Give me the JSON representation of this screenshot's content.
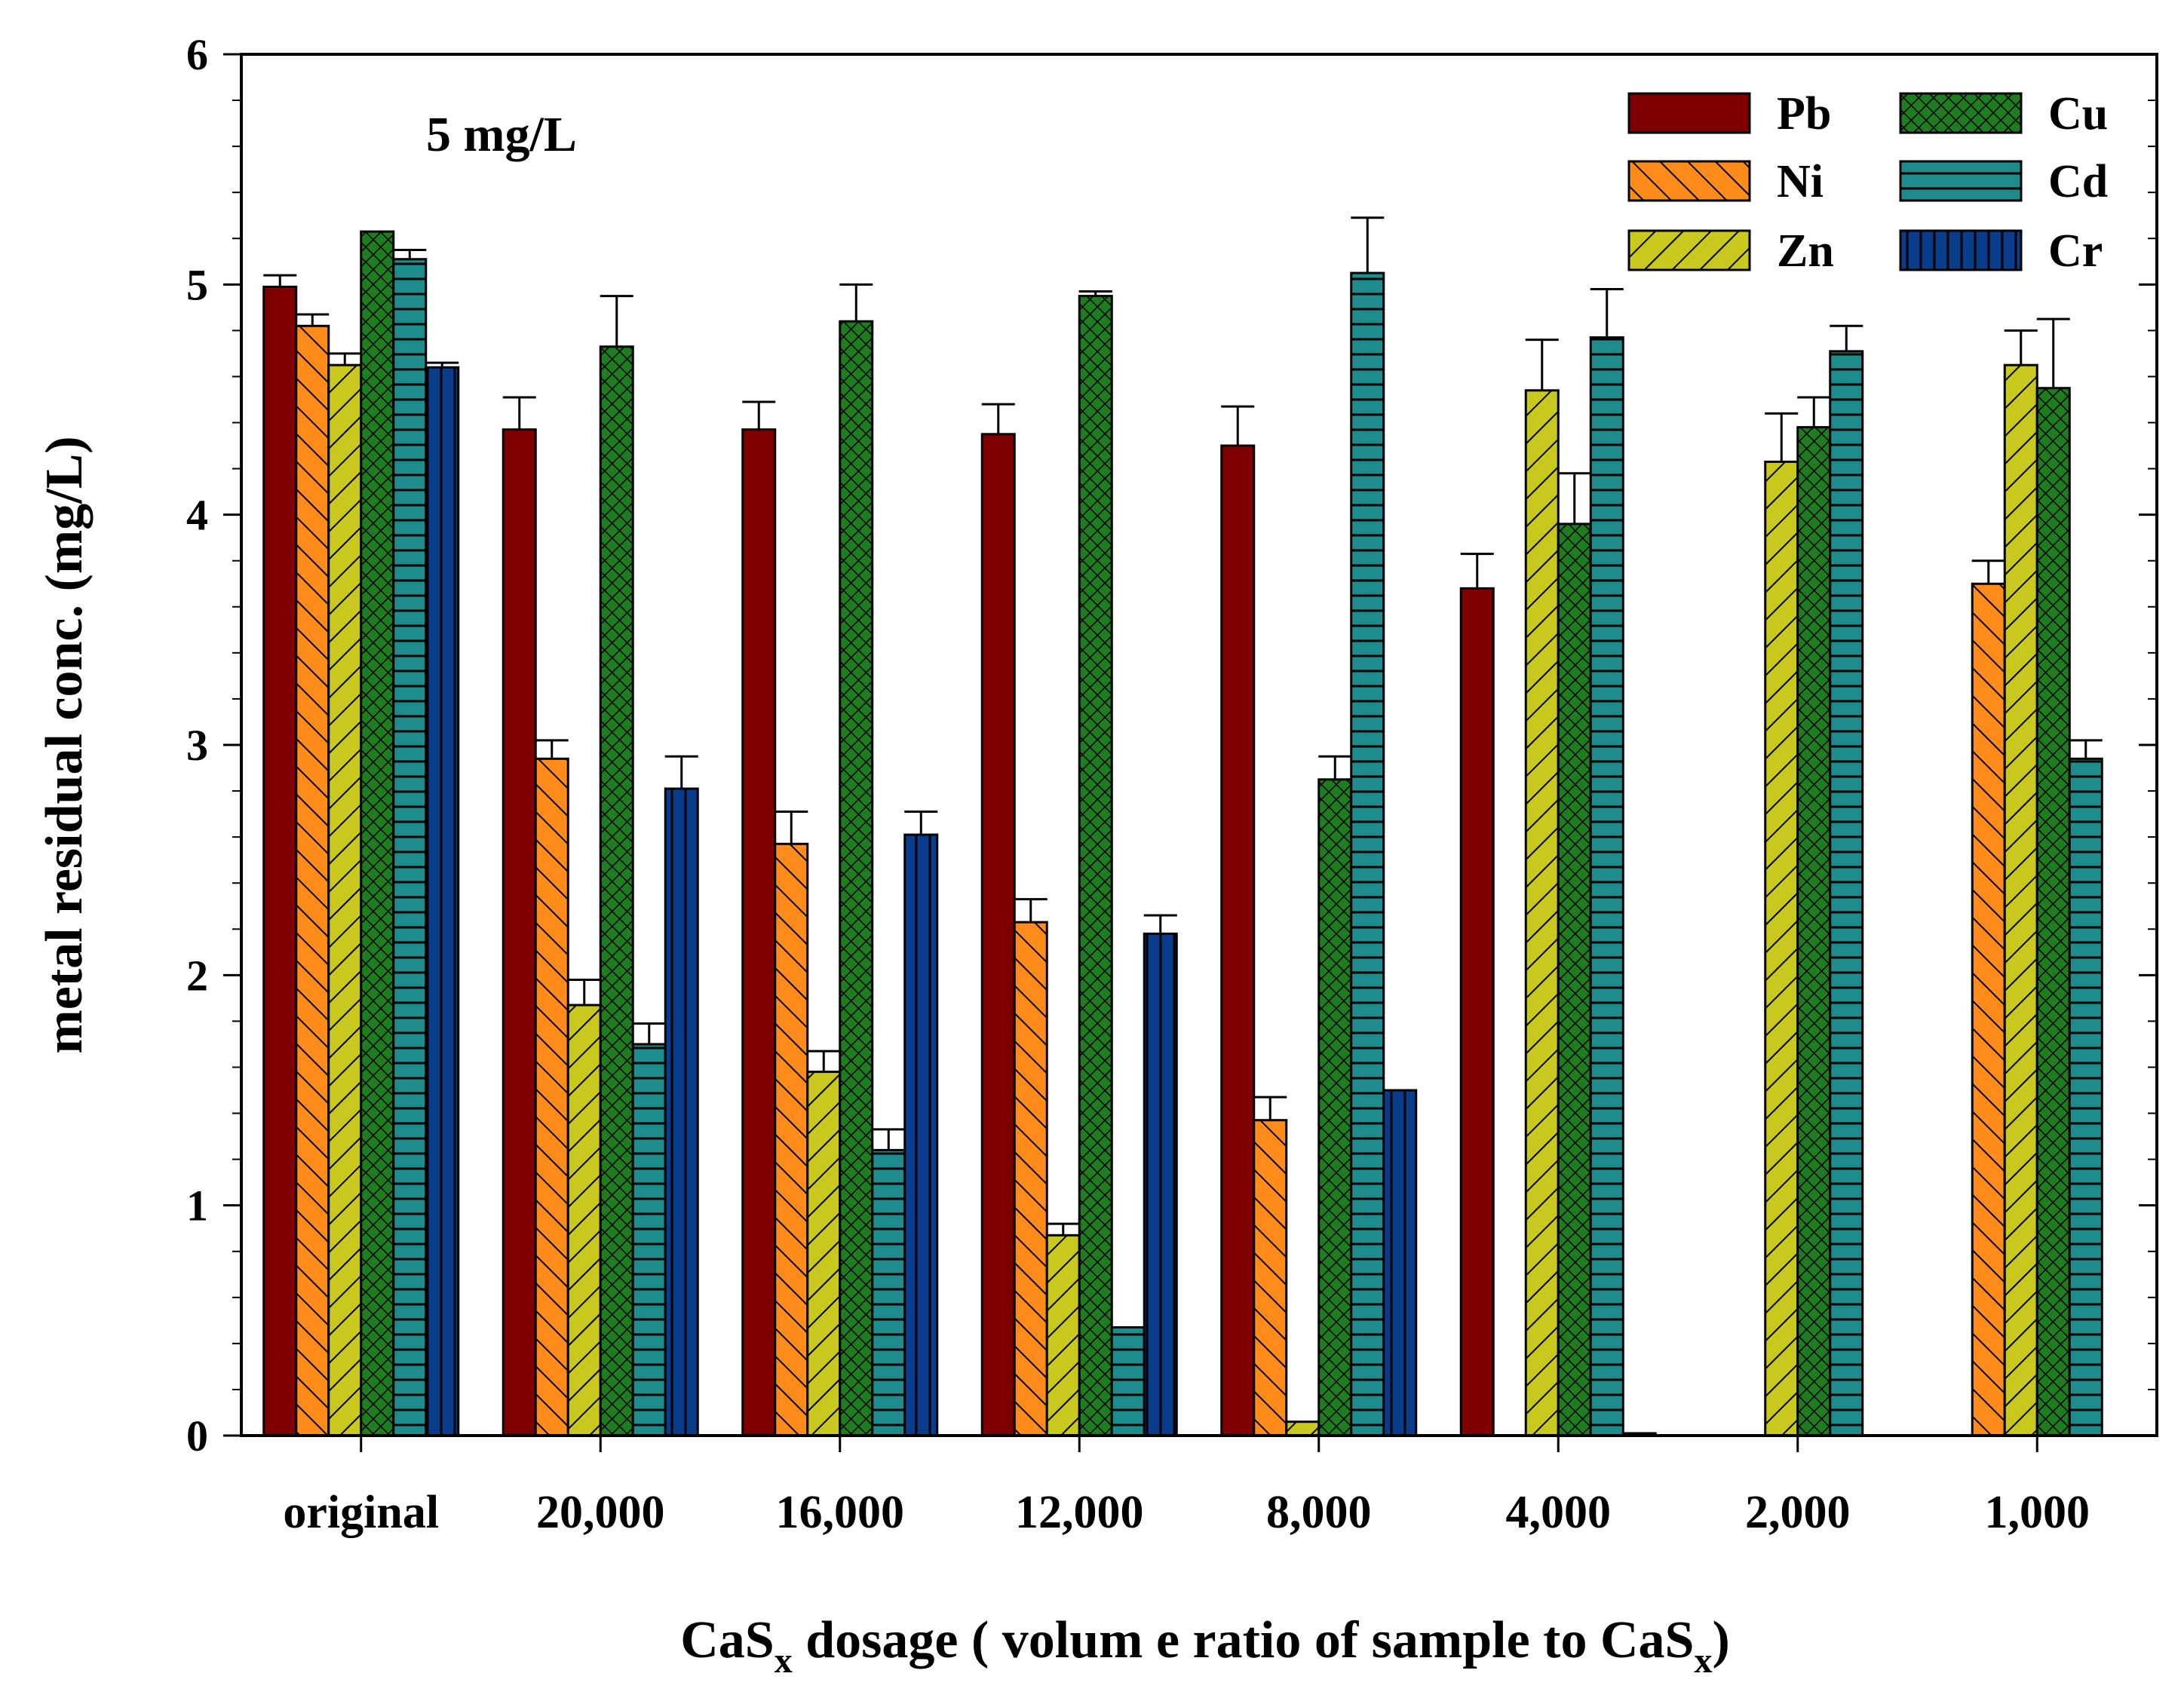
{
  "chart_data": {
    "type": "bar",
    "title": "",
    "annotation": "5 mg/L",
    "xlabel": {
      "main": "CaS",
      "sub": "x",
      "rest": " dosage ( volum e ratio of sample to CaS",
      "sub2": "x",
      "end": ")"
    },
    "ylabel": "metal residual conc. (mg/L)",
    "ylim": [
      0,
      6
    ],
    "yticks": [
      "0",
      "1",
      "2",
      "3",
      "4",
      "5",
      "6"
    ],
    "legend_position": "top-right",
    "categories": [
      "original",
      "20,000",
      "16,000",
      "12,000",
      "8,000",
      "4,000",
      "2,000",
      "1,000"
    ],
    "series": [
      {
        "name": "Pb",
        "color": "#7f0000",
        "pattern": "solid",
        "values": [
          4.99,
          4.37,
          4.37,
          4.35,
          4.3,
          3.68,
          null,
          null
        ],
        "errors": [
          0.05,
          0.14,
          0.12,
          0.13,
          0.17,
          0.15,
          null,
          null
        ]
      },
      {
        "name": "Ni",
        "color": "#ff8c1a",
        "pattern": "diag-fwd",
        "values": [
          4.82,
          2.94,
          2.57,
          2.23,
          1.37,
          null,
          null,
          3.7
        ],
        "errors": [
          0.05,
          0.08,
          0.14,
          0.1,
          0.1,
          null,
          null,
          0.1
        ]
      },
      {
        "name": "Zn",
        "color": "#c8c81e",
        "pattern": "diag-back",
        "values": [
          4.65,
          1.87,
          1.58,
          0.87,
          0.06,
          4.54,
          4.23,
          4.65
        ],
        "errors": [
          0.05,
          0.11,
          0.09,
          0.05,
          0.0,
          0.22,
          0.21,
          0.15
        ]
      },
      {
        "name": "Cu",
        "color": "#1e7d1e",
        "pattern": "crosshatch",
        "values": [
          5.23,
          4.73,
          4.84,
          4.95,
          2.85,
          3.96,
          4.38,
          4.55
        ],
        "errors": [
          0.0,
          0.22,
          0.16,
          0.02,
          0.1,
          0.22,
          0.13,
          0.3
        ]
      },
      {
        "name": "Cd",
        "color": "#1e8c8c",
        "pattern": "horizontal",
        "values": [
          5.11,
          1.7,
          1.24,
          0.47,
          5.05,
          4.77,
          4.71,
          2.94
        ],
        "errors": [
          0.04,
          0.09,
          0.09,
          0.0,
          0.24,
          0.21,
          0.11,
          0.08
        ]
      },
      {
        "name": "Cr",
        "color": "#0a3c8c",
        "pattern": "vertical",
        "values": [
          4.64,
          2.81,
          2.61,
          2.18,
          1.5,
          0.01,
          null,
          null
        ],
        "errors": [
          0.02,
          0.14,
          0.1,
          0.08,
          0.0,
          0.0,
          null,
          null
        ]
      }
    ]
  }
}
